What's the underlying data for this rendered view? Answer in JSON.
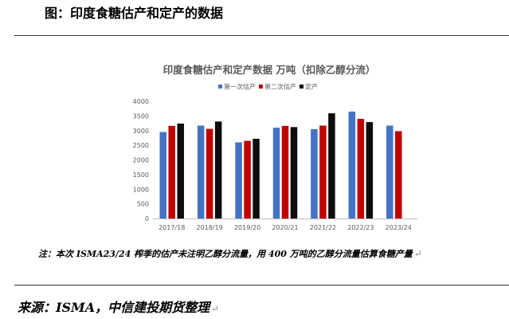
{
  "header": {
    "title": "图：印度食糖估产和定产的数据"
  },
  "note": "注：本次 ISMA23/24 榨季的估产未注明乙醇分流量，用 400 万吨的乙醇分流量估算食糖产量",
  "source": "来源：ISMA，中信建投期货整理",
  "colors": {
    "first_estimate": "#4472C4",
    "second_estimate": "#C00000",
    "final": "#0D0D0D"
  },
  "chart_data": {
    "type": "bar",
    "title": "印度食糖估产和定产数据 万吨（扣除乙醇分流）",
    "categories": [
      "2017/18",
      "2018/19",
      "2019/20",
      "2020/21",
      "2021/22",
      "2022/23",
      "2023/24"
    ],
    "series": [
      {
        "name": "第一次估产",
        "values": [
          2950,
          3170,
          2600,
          3100,
          3050,
          3650,
          3170
        ]
      },
      {
        "name": "第二次估产",
        "values": [
          3160,
          3060,
          2650,
          3160,
          3170,
          3400,
          2980
        ]
      },
      {
        "name": "定产",
        "values": [
          3240,
          3310,
          2720,
          3120,
          3590,
          3290,
          null
        ]
      }
    ],
    "ylim": [
      0,
      4000
    ],
    "yticks": [
      0,
      500,
      1000,
      1500,
      2000,
      2500,
      3000,
      3500,
      4000
    ],
    "grid": false,
    "legend_position": "top"
  }
}
